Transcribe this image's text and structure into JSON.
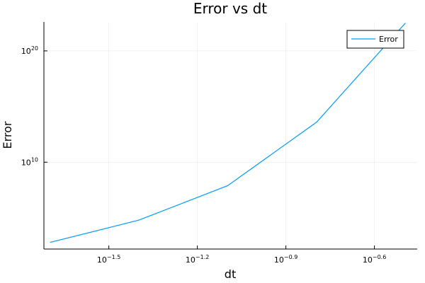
{
  "chart_data": {
    "type": "line",
    "title": "Error vs dt",
    "xlabel": "dt",
    "ylabel": "Error",
    "x_scale": "log10",
    "y_scale": "log10",
    "grid": true,
    "legend_position": "top-right",
    "xlim_log10": [
      -1.72,
      -0.455
    ],
    "ylim_log10": [
      2.2,
      22.6
    ],
    "x_ticks": [
      {
        "base": "10",
        "exp": "−1.5",
        "log10": -1.5
      },
      {
        "base": "10",
        "exp": "−1.2",
        "log10": -1.2
      },
      {
        "base": "10",
        "exp": "−0.9",
        "log10": -0.9
      },
      {
        "base": "10",
        "exp": "−0.6",
        "log10": -0.6
      }
    ],
    "y_ticks": [
      {
        "base": "10",
        "exp": "10",
        "log10": 10
      },
      {
        "base": "10",
        "exp": "20",
        "log10": 20
      }
    ],
    "series": [
      {
        "name": "Error",
        "color": "#009af9",
        "points": [
          {
            "dt": 0.02,
            "error_log10": 2.8
          },
          {
            "dt": 0.04,
            "error_log10": 4.8
          },
          {
            "dt": 0.08,
            "error_log10": 7.9
          },
          {
            "dt": 0.16,
            "error_log10": 13.6
          },
          {
            "dt": 0.32,
            "error_log10": 22.5
          }
        ]
      }
    ]
  }
}
